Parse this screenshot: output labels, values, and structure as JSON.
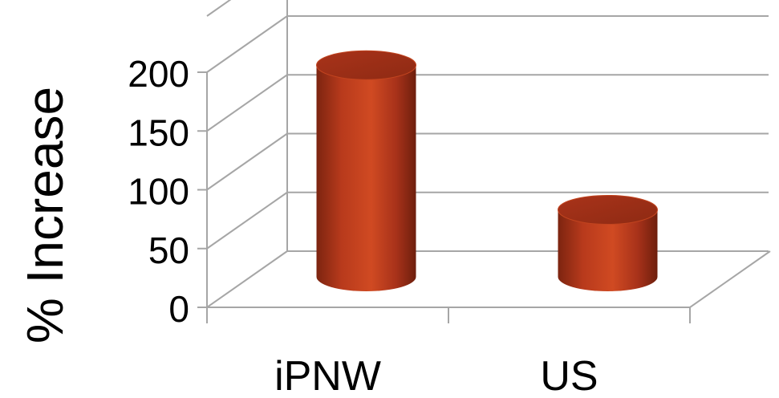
{
  "chart_data": {
    "type": "bar",
    "style": "3d-cylinder",
    "categories": [
      "iPNW",
      "US"
    ],
    "series": [
      {
        "values": [
          180,
          57
        ]
      }
    ],
    "ylabel": "% Increase",
    "xlabel": "",
    "title": "",
    "ylim": [
      0,
      200
    ],
    "yticks": [
      0,
      50,
      100,
      150,
      200
    ],
    "grid": true,
    "legend": "none",
    "bar_color": "#b83a1c",
    "bar_highlight": "#d4512a",
    "bar_shadow": "#7c2410",
    "grid_color": "#a6a6a6"
  }
}
